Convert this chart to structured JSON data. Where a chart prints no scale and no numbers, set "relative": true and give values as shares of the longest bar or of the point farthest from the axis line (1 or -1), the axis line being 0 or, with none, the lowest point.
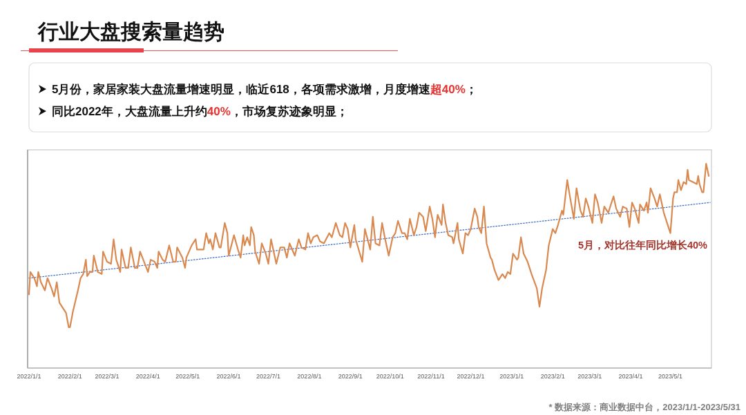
{
  "chart_data": {
    "type": "line",
    "title": "行业大盘搜索量趋势",
    "relative": true,
    "annotations": [
      "5月份，家居家装大盘流量增速明显，临近618，各项需求激增，月度增速**超40%**；",
      "同比2022年，大盘流量上升约**40%**，市场复苏迹象明显；",
      "5月，对比往年同比增长40%",
      "* 数据来源：商业数据中台，2023/1/1-2023/5/31"
    ],
    "xlim": [
      "2022-01-01",
      "2023-05-31"
    ],
    "xticks": [
      {
        "value": "2022-01-01",
        "label": "2022/1/1"
      },
      {
        "value": "2022-02-01",
        "label": "2022/2/1"
      },
      {
        "value": "2022-03-01",
        "label": "2022/3/1"
      },
      {
        "value": "2022-04-01",
        "label": "2022/4/1"
      },
      {
        "value": "2022-05-01",
        "label": "2022/5/1"
      },
      {
        "value": "2022-06-01",
        "label": "2022/6/1"
      },
      {
        "value": "2022-07-01",
        "label": "2022/7/1"
      },
      {
        "value": "2022-08-01",
        "label": "2022/8/1"
      },
      {
        "value": "2022-09-01",
        "label": "2022/9/1"
      },
      {
        "value": "2022-10-01",
        "label": "2022/10/1"
      },
      {
        "value": "2022-11-01",
        "label": "2022/11/1"
      },
      {
        "value": "2022-12-01",
        "label": "2022/12/1"
      },
      {
        "value": "2023-01-01",
        "label": "2023/1/1"
      },
      {
        "value": "2023-02-01",
        "label": "2023/2/1"
      },
      {
        "value": "2023-03-01",
        "label": "2023/3/1"
      },
      {
        "value": "2023-04-01",
        "label": "2023/4/1"
      },
      {
        "value": "2023-05-01",
        "label": "2023/5/1"
      }
    ],
    "x": [
      "2022-01-01",
      "2022-01-02",
      "2022-01-05",
      "2022-01-07",
      "2022-01-08",
      "2022-01-10",
      "2022-01-13",
      "2022-01-15",
      "2022-01-18",
      "2022-01-20",
      "2022-01-22",
      "2022-01-24",
      "2022-01-29",
      "2022-01-31",
      "2022-02-01",
      "2022-02-03",
      "2022-02-07",
      "2022-02-09",
      "2022-02-11",
      "2022-02-13",
      "2022-02-14",
      "2022-02-16",
      "2022-02-18",
      "2022-02-19",
      "2022-02-22",
      "2022-02-25",
      "2022-02-26",
      "2022-03-01",
      "2022-03-04",
      "2022-03-06",
      "2022-03-08",
      "2022-03-11",
      "2022-03-12",
      "2022-03-15",
      "2022-03-17",
      "2022-03-19",
      "2022-03-22",
      "2022-03-24",
      "2022-03-26",
      "2022-03-29",
      "2022-04-01",
      "2022-04-03",
      "2022-04-06",
      "2022-04-08",
      "2022-04-09",
      "2022-04-12",
      "2022-04-14",
      "2022-04-17",
      "2022-04-20",
      "2022-04-22",
      "2022-04-23",
      "2022-04-27",
      "2022-04-29",
      "2022-04-30",
      "2022-05-04",
      "2022-05-07",
      "2022-05-08",
      "2022-05-13",
      "2022-05-15",
      "2022-05-17",
      "2022-05-18",
      "2022-05-20",
      "2022-05-22",
      "2022-05-25",
      "2022-05-26",
      "2022-05-29",
      "2022-05-31",
      "2022-06-01",
      "2022-06-05",
      "2022-06-08",
      "2022-06-10",
      "2022-06-12",
      "2022-06-13",
      "2022-06-15",
      "2022-06-17",
      "2022-06-18",
      "2022-06-20",
      "2022-06-21",
      "2022-06-24",
      "2022-06-26",
      "2022-06-29",
      "2022-07-01",
      "2022-07-03",
      "2022-07-07",
      "2022-07-10",
      "2022-07-13",
      "2022-07-15",
      "2022-07-17",
      "2022-07-21",
      "2022-07-24",
      "2022-07-26",
      "2022-07-29",
      "2022-07-31",
      "2022-08-02",
      "2022-08-04",
      "2022-08-07",
      "2022-08-09",
      "2022-08-12",
      "2022-08-16",
      "2022-08-18",
      "2022-08-21",
      "2022-08-24",
      "2022-08-26",
      "2022-08-28",
      "2022-08-30",
      "2022-09-01",
      "2022-09-04",
      "2022-09-05",
      "2022-09-10",
      "2022-09-12",
      "2022-09-14",
      "2022-09-16",
      "2022-09-18",
      "2022-09-20",
      "2022-09-23",
      "2022-09-25",
      "2022-09-27",
      "2022-09-30",
      "2022-10-03",
      "2022-10-05",
      "2022-10-07",
      "2022-10-10",
      "2022-10-12",
      "2022-10-14",
      "2022-10-16",
      "2022-10-19",
      "2022-10-21",
      "2022-10-23",
      "2022-10-26",
      "2022-10-28",
      "2022-10-31",
      "2022-11-02",
      "2022-11-04",
      "2022-11-06",
      "2022-11-09",
      "2022-11-10",
      "2022-11-12",
      "2022-11-14",
      "2022-11-17",
      "2022-11-18",
      "2022-11-21",
      "2022-11-22",
      "2022-11-25",
      "2022-11-27",
      "2022-11-29",
      "2022-12-01",
      "2022-12-04",
      "2022-12-06",
      "2022-12-07",
      "2022-12-09",
      "2022-12-11",
      "2022-12-13",
      "2022-12-16",
      "2022-12-17",
      "2022-12-19",
      "2022-12-22",
      "2022-12-25",
      "2022-12-27",
      "2022-12-29",
      "2022-12-31",
      "2023-01-02",
      "2023-01-05",
      "2023-01-06",
      "2023-01-08",
      "2023-01-10",
      "2023-01-13",
      "2023-01-16",
      "2023-01-20",
      "2023-01-22",
      "2023-01-24",
      "2023-01-27",
      "2023-01-29",
      "2023-02-01",
      "2023-02-03",
      "2023-02-05",
      "2023-02-08",
      "2023-02-09",
      "2023-02-12",
      "2023-02-14",
      "2023-02-17",
      "2023-02-19",
      "2023-02-22",
      "2023-02-24",
      "2023-02-26",
      "2023-02-28",
      "2023-03-03",
      "2023-03-05",
      "2023-03-07",
      "2023-03-10",
      "2023-03-12",
      "2023-03-15",
      "2023-03-19",
      "2023-03-21",
      "2023-03-24",
      "2023-03-26",
      "2023-03-29",
      "2023-03-31",
      "2023-04-02",
      "2023-04-04",
      "2023-04-07",
      "2023-04-08",
      "2023-04-11",
      "2023-04-13",
      "2023-04-14",
      "2023-04-16",
      "2023-04-19",
      "2023-04-21",
      "2023-04-23",
      "2023-04-26",
      "2023-04-29",
      "2023-05-01",
      "2023-05-03",
      "2023-05-04",
      "2023-05-06",
      "2023-05-07",
      "2023-05-09",
      "2023-05-11",
      "2023-05-13",
      "2023-05-14",
      "2023-05-15",
      "2023-05-21",
      "2023-05-22",
      "2023-05-23",
      "2023-05-25",
      "2023-05-26",
      "2023-05-28",
      "2023-05-30"
    ],
    "series": [
      {
        "color": "#d9894f",
        "values": [
          0.36,
          0.47,
          0.44,
          0.4,
          0.47,
          0.42,
          0.38,
          0.44,
          0.39,
          0.35,
          0.42,
          0.32,
          0.27,
          0.2,
          0.2,
          0.27,
          0.38,
          0.44,
          0.46,
          0.53,
          0.45,
          0.47,
          0.47,
          0.55,
          0.47,
          0.46,
          0.57,
          0.52,
          0.51,
          0.63,
          0.53,
          0.47,
          0.58,
          0.49,
          0.49,
          0.59,
          0.49,
          0.49,
          0.57,
          0.52,
          0.47,
          0.53,
          0.52,
          0.49,
          0.57,
          0.53,
          0.52,
          0.6,
          0.52,
          0.52,
          0.59,
          0.54,
          0.49,
          0.54,
          0.6,
          0.63,
          0.58,
          0.58,
          0.66,
          0.61,
          0.63,
          0.58,
          0.66,
          0.59,
          0.59,
          0.71,
          0.66,
          0.55,
          0.65,
          0.58,
          0.54,
          0.65,
          0.6,
          0.64,
          0.6,
          0.69,
          0.65,
          0.57,
          0.51,
          0.61,
          0.56,
          0.51,
          0.63,
          0.51,
          0.59,
          0.59,
          0.54,
          0.61,
          0.55,
          0.63,
          0.59,
          0.58,
          0.66,
          0.61,
          0.64,
          0.65,
          0.62,
          0.61,
          0.66,
          0.64,
          0.71,
          0.65,
          0.64,
          0.71,
          0.68,
          0.59,
          0.7,
          0.63,
          0.52,
          0.68,
          0.63,
          0.58,
          0.74,
          0.61,
          0.6,
          0.71,
          0.64,
          0.55,
          0.64,
          0.66,
          0.72,
          0.66,
          0.66,
          0.63,
          0.73,
          0.65,
          0.69,
          0.76,
          0.74,
          0.67,
          0.79,
          0.73,
          0.64,
          0.75,
          0.7,
          0.8,
          0.71,
          0.65,
          0.64,
          0.61,
          0.71,
          0.63,
          0.56,
          0.66,
          0.65,
          0.68,
          0.78,
          0.74,
          0.69,
          0.66,
          0.79,
          0.61,
          0.54,
          0.53,
          0.48,
          0.43,
          0.46,
          0.44,
          0.47,
          0.46,
          0.56,
          0.53,
          0.54,
          0.64,
          0.56,
          0.52,
          0.46,
          0.39,
          0.3,
          0.39,
          0.48,
          0.6,
          0.68,
          0.66,
          0.7,
          0.77,
          0.75,
          0.92,
          0.84,
          0.73,
          0.88,
          0.77,
          0.74,
          0.83,
          0.79,
          0.71,
          0.85,
          0.81,
          0.71,
          0.79,
          0.76,
          0.84,
          0.78,
          0.74,
          0.79,
          0.78,
          0.69,
          0.81,
          0.78,
          0.71,
          0.8,
          0.77,
          0.81,
          0.76,
          0.88,
          0.83,
          0.79,
          0.85,
          0.76,
          0.7,
          0.66,
          0.83,
          0.86,
          0.86,
          0.92,
          0.87,
          0.91,
          0.9,
          0.97,
          0.92,
          0.9,
          0.94,
          0.9,
          0.86,
          0.86,
          1,
          0.94
        ]
      },
      {
        "type": "line",
        "color": "#4472c4",
        "line_style": "dotted",
        "x": [
          "2022-01-01",
          "2023-05-31"
        ],
        "values": [
          0.44,
          0.81
        ]
      }
    ]
  }
}
